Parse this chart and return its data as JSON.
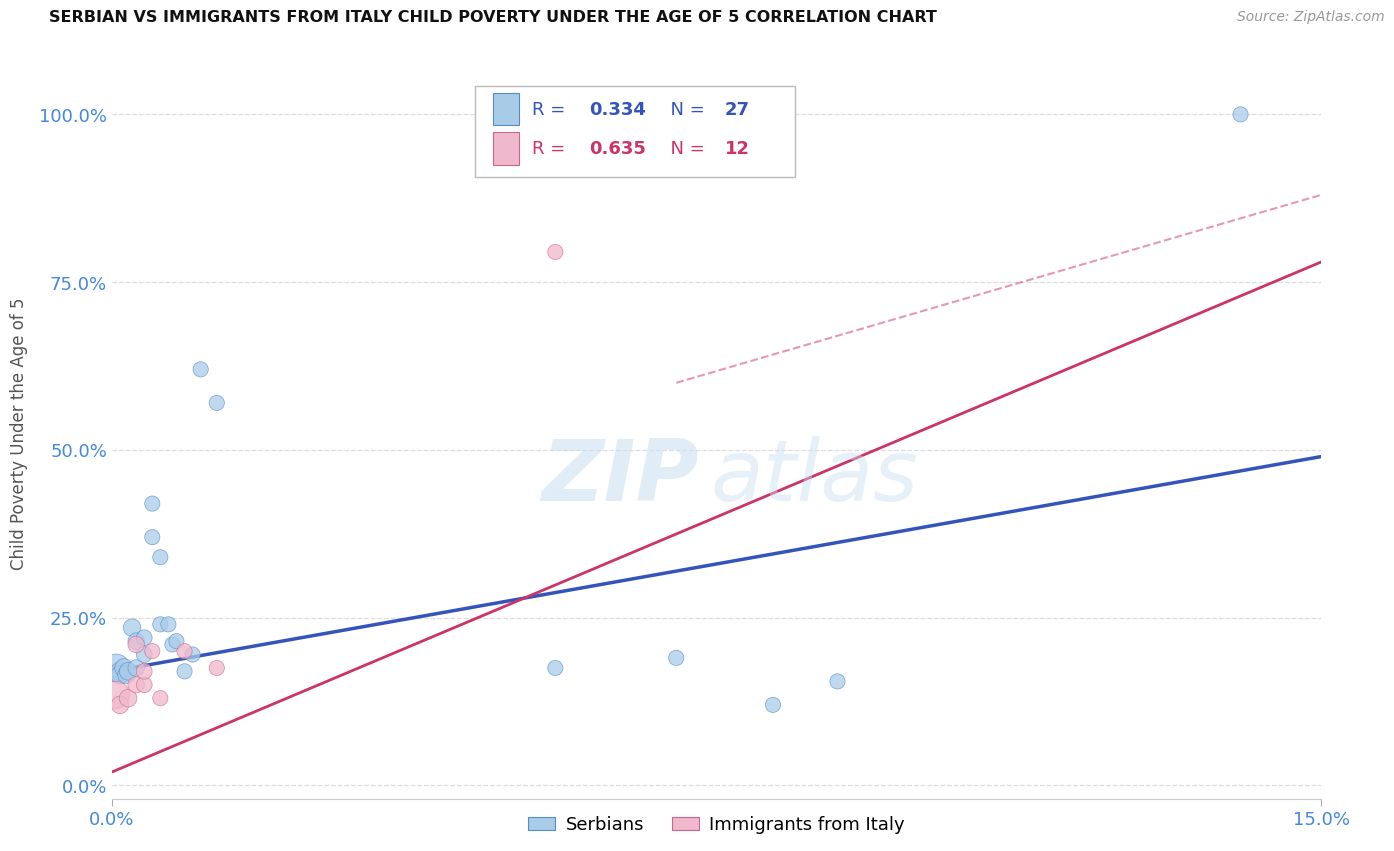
{
  "title": "SERBIAN VS IMMIGRANTS FROM ITALY CHILD POVERTY UNDER THE AGE OF 5 CORRELATION CHART",
  "source": "Source: ZipAtlas.com",
  "ylabel": "Child Poverty Under the Age of 5",
  "xlim": [
    0.0,
    0.15
  ],
  "ylim": [
    -0.02,
    1.07
  ],
  "yticks": [
    0.0,
    0.25,
    0.5,
    0.75,
    1.0
  ],
  "ytick_labels": [
    "0.0%",
    "25.0%",
    "50.0%",
    "75.0%",
    "100.0%"
  ],
  "xticks": [
    0.0,
    0.15
  ],
  "xtick_labels": [
    "0.0%",
    "15.0%"
  ],
  "serbians_x": [
    0.0005,
    0.001,
    0.001,
    0.0015,
    0.0018,
    0.002,
    0.0025,
    0.003,
    0.003,
    0.004,
    0.004,
    0.005,
    0.005,
    0.006,
    0.006,
    0.007,
    0.0075,
    0.008,
    0.009,
    0.01,
    0.011,
    0.013,
    0.055,
    0.07,
    0.082,
    0.09,
    0.14
  ],
  "serbians_y": [
    0.175,
    0.17,
    0.165,
    0.175,
    0.165,
    0.17,
    0.235,
    0.215,
    0.175,
    0.22,
    0.195,
    0.42,
    0.37,
    0.34,
    0.24,
    0.24,
    0.21,
    0.215,
    0.17,
    0.195,
    0.62,
    0.57,
    0.175,
    0.19,
    0.12,
    0.155,
    1.0
  ],
  "serbians_sizes": [
    400,
    180,
    180,
    180,
    160,
    160,
    160,
    140,
    140,
    130,
    130,
    120,
    120,
    120,
    120,
    120,
    120,
    120,
    120,
    120,
    120,
    120,
    120,
    120,
    120,
    120,
    120
  ],
  "italy_x": [
    0.0005,
    0.001,
    0.002,
    0.003,
    0.003,
    0.004,
    0.004,
    0.005,
    0.006,
    0.009,
    0.013,
    0.055
  ],
  "italy_y": [
    0.135,
    0.12,
    0.13,
    0.21,
    0.15,
    0.15,
    0.17,
    0.2,
    0.13,
    0.2,
    0.175,
    0.795
  ],
  "italy_sizes": [
    380,
    160,
    160,
    140,
    140,
    130,
    130,
    120,
    120,
    120,
    120,
    120
  ],
  "serbian_R": "0.334",
  "serbian_N": "27",
  "italy_R": "0.635",
  "italy_N": "12",
  "serbian_color": "#a8cce8",
  "serbian_edge_color": "#5588cc",
  "serbian_line_color": "#3355bb",
  "italy_color": "#f0b8cc",
  "italy_edge_color": "#cc6688",
  "italy_line_color": "#cc3366",
  "serbian_trend": [
    0.0,
    0.17,
    0.15,
    0.49
  ],
  "italy_trend": [
    0.0,
    0.02,
    0.15,
    0.78
  ],
  "italy_dashed": [
    0.07,
    0.6,
    0.15,
    0.88
  ],
  "watermark_color": "#c8dff0",
  "background_color": "#ffffff",
  "grid_color": "#dddddd",
  "title_color": "#111111",
  "axis_label_color": "#4488dd",
  "ylabel_color": "#555555",
  "legend_srb_color": "#3355bb",
  "legend_italy_color": "#cc3366"
}
